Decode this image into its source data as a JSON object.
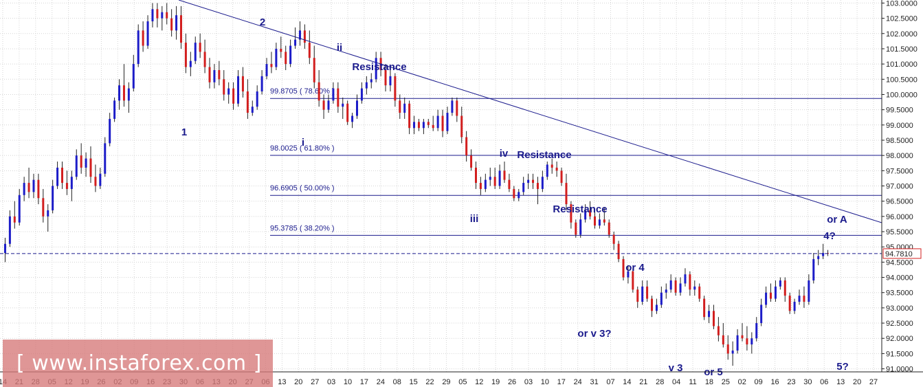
{
  "colors": {
    "background": "#ffffff",
    "grid": "#d4d4d4",
    "up_candle": "#1c1cc8",
    "down_candle": "#d21e1e",
    "wick": "#202020",
    "trendline": "#1a1a8c",
    "fib_line": "#1a1a8c",
    "annotation": "#1a1a8c",
    "price_box": "#d21e1e",
    "watermark_bg": "#d67878",
    "watermark_text": "#ffffff",
    "axis_text": "#1e1e1e"
  },
  "watermark": {
    "text": "[ www.instaforex.com ]"
  },
  "chart_data": {
    "type": "candlestick",
    "title": "",
    "xlabel": "",
    "ylabel": "",
    "ylim": [
      90.9,
      103.1
    ],
    "grid": true,
    "current_price": "94.7810",
    "current_price_value": 94.781,
    "y_ticks": [
      "91.0000",
      "91.5000",
      "92.0000",
      "92.5000",
      "93.0000",
      "93.5000",
      "94.0000",
      "94.5000",
      "95.0000",
      "95.5000",
      "96.0000",
      "96.5000",
      "97.0000",
      "97.5000",
      "98.0000",
      "98.5000",
      "99.0000",
      "99.5000",
      "100.0000",
      "100.5000",
      "101.0000",
      "101.5000",
      "102.0000",
      "102.5000",
      "103.0000"
    ],
    "x_ticks": [
      "14",
      "21",
      "28",
      "05",
      "12",
      "19",
      "26",
      "02",
      "09",
      "16",
      "23",
      "30",
      "06",
      "13",
      "20",
      "27",
      "06",
      "13",
      "20",
      "27",
      "03",
      "10",
      "17",
      "24",
      "08",
      "15",
      "22",
      "29",
      "05",
      "12",
      "19",
      "26",
      "03",
      "10",
      "17",
      "24",
      "31",
      "07",
      "14",
      "21",
      "28",
      "04",
      "11",
      "18",
      "25",
      "02",
      "09",
      "16",
      "23",
      "30",
      "06",
      "13",
      "20",
      "27"
    ],
    "fib_levels": [
      {
        "label": "99.8705 ( 78.60% )",
        "value": 99.8705
      },
      {
        "label": "98.0025 ( 61.80% )",
        "value": 98.0025
      },
      {
        "label": "96.6905 ( 50.00% )",
        "value": 96.6905
      },
      {
        "label": "95.3785 ( 38.20% )",
        "value": 95.3785
      }
    ],
    "trendline": {
      "points": [
        [
          24,
          104.0
        ],
        [
          299,
          95.9
        ]
      ]
    },
    "wave_labels": [
      "1",
      "2",
      "i",
      "ii",
      "iii",
      "iv",
      "or v 3?",
      "or 4",
      "v 3",
      "or 5",
      "4?",
      "or A",
      "5?"
    ],
    "resistance_labels": [
      "Resistance",
      "Resistance",
      "Resistance"
    ],
    "candles": [
      {
        "o": 94.8,
        "h": 95.3,
        "l": 94.5,
        "c": 95.1
      },
      {
        "o": 95.1,
        "h": 96.2,
        "l": 95.0,
        "c": 96.0
      },
      {
        "o": 96.0,
        "h": 96.5,
        "l": 95.6,
        "c": 95.8
      },
      {
        "o": 95.8,
        "h": 96.9,
        "l": 95.7,
        "c": 96.7
      },
      {
        "o": 96.7,
        "h": 97.3,
        "l": 96.5,
        "c": 97.1
      },
      {
        "o": 97.1,
        "h": 97.6,
        "l": 96.6,
        "c": 96.8
      },
      {
        "o": 96.8,
        "h": 97.4,
        "l": 96.6,
        "c": 97.2
      },
      {
        "o": 97.2,
        "h": 97.4,
        "l": 96.4,
        "c": 96.6
      },
      {
        "o": 96.6,
        "h": 96.9,
        "l": 95.8,
        "c": 96.0
      },
      {
        "o": 96.0,
        "h": 96.4,
        "l": 95.5,
        "c": 96.2
      },
      {
        "o": 96.2,
        "h": 97.2,
        "l": 96.1,
        "c": 97.0
      },
      {
        "o": 97.0,
        "h": 97.8,
        "l": 96.9,
        "c": 97.6
      },
      {
        "o": 97.6,
        "h": 97.8,
        "l": 96.9,
        "c": 97.1
      },
      {
        "o": 97.1,
        "h": 97.5,
        "l": 96.7,
        "c": 96.9
      },
      {
        "o": 96.9,
        "h": 97.5,
        "l": 96.5,
        "c": 97.3
      },
      {
        "o": 97.3,
        "h": 98.2,
        "l": 97.2,
        "c": 98.0
      },
      {
        "o": 98.0,
        "h": 98.4,
        "l": 97.4,
        "c": 97.6
      },
      {
        "o": 97.6,
        "h": 98.1,
        "l": 97.3,
        "c": 97.9
      },
      {
        "o": 97.9,
        "h": 98.3,
        "l": 97.1,
        "c": 97.3
      },
      {
        "o": 97.3,
        "h": 97.7,
        "l": 96.8,
        "c": 97.0
      },
      {
        "o": 97.0,
        "h": 97.6,
        "l": 96.9,
        "c": 97.4
      },
      {
        "o": 97.4,
        "h": 98.6,
        "l": 97.3,
        "c": 98.4
      },
      {
        "o": 98.4,
        "h": 99.4,
        "l": 98.3,
        "c": 99.2
      },
      {
        "o": 99.2,
        "h": 99.9,
        "l": 99.1,
        "c": 99.8
      },
      {
        "o": 99.8,
        "h": 100.5,
        "l": 99.5,
        "c": 100.3
      },
      {
        "o": 100.3,
        "h": 101.0,
        "l": 99.6,
        "c": 99.8
      },
      {
        "o": 99.8,
        "h": 100.4,
        "l": 99.4,
        "c": 100.2
      },
      {
        "o": 100.2,
        "h": 101.3,
        "l": 100.1,
        "c": 101.0
      },
      {
        "o": 101.0,
        "h": 102.3,
        "l": 100.9,
        "c": 102.1
      },
      {
        "o": 102.1,
        "h": 102.4,
        "l": 101.4,
        "c": 101.6
      },
      {
        "o": 101.6,
        "h": 102.6,
        "l": 101.5,
        "c": 102.4
      },
      {
        "o": 102.4,
        "h": 103.0,
        "l": 102.2,
        "c": 102.8
      },
      {
        "o": 102.8,
        "h": 103.0,
        "l": 102.2,
        "c": 102.5
      },
      {
        "o": 102.5,
        "h": 102.9,
        "l": 102.1,
        "c": 102.7
      },
      {
        "o": 102.7,
        "h": 103.0,
        "l": 102.3,
        "c": 102.5
      },
      {
        "o": 102.5,
        "h": 102.8,
        "l": 101.9,
        "c": 102.1
      },
      {
        "o": 102.1,
        "h": 102.9,
        "l": 101.8,
        "c": 102.6
      },
      {
        "o": 102.6,
        "h": 102.9,
        "l": 101.5,
        "c": 101.7
      },
      {
        "o": 101.7,
        "h": 102.0,
        "l": 100.7,
        "c": 100.9
      },
      {
        "o": 100.9,
        "h": 101.4,
        "l": 100.6,
        "c": 101.1
      },
      {
        "o": 101.1,
        "h": 101.9,
        "l": 101.0,
        "c": 101.7
      },
      {
        "o": 101.7,
        "h": 102.0,
        "l": 101.2,
        "c": 101.4
      },
      {
        "o": 101.4,
        "h": 101.8,
        "l": 100.7,
        "c": 100.9
      },
      {
        "o": 100.9,
        "h": 101.2,
        "l": 100.2,
        "c": 100.4
      },
      {
        "o": 100.4,
        "h": 101.0,
        "l": 100.2,
        "c": 100.8
      },
      {
        "o": 100.8,
        "h": 101.1,
        "l": 100.3,
        "c": 100.5
      },
      {
        "o": 100.5,
        "h": 100.8,
        "l": 99.8,
        "c": 100.0
      },
      {
        "o": 100.0,
        "h": 100.4,
        "l": 99.7,
        "c": 100.2
      },
      {
        "o": 100.2,
        "h": 100.4,
        "l": 99.5,
        "c": 99.7
      },
      {
        "o": 99.7,
        "h": 100.8,
        "l": 99.6,
        "c": 100.6
      },
      {
        "o": 100.6,
        "h": 100.9,
        "l": 99.9,
        "c": 100.1
      },
      {
        "o": 100.1,
        "h": 100.5,
        "l": 99.2,
        "c": 99.4
      },
      {
        "o": 99.4,
        "h": 99.8,
        "l": 99.3,
        "c": 99.6
      },
      {
        "o": 99.6,
        "h": 100.3,
        "l": 99.5,
        "c": 100.1
      },
      {
        "o": 100.1,
        "h": 100.8,
        "l": 100.0,
        "c": 100.6
      },
      {
        "o": 100.6,
        "h": 101.2,
        "l": 100.5,
        "c": 101.0
      },
      {
        "o": 101.0,
        "h": 101.4,
        "l": 100.7,
        "c": 100.9
      },
      {
        "o": 100.9,
        "h": 101.7,
        "l": 100.8,
        "c": 101.5
      },
      {
        "o": 101.5,
        "h": 101.9,
        "l": 101.2,
        "c": 101.4
      },
      {
        "o": 101.4,
        "h": 101.6,
        "l": 100.8,
        "c": 101.0
      },
      {
        "o": 101.0,
        "h": 101.8,
        "l": 100.9,
        "c": 101.6
      },
      {
        "o": 101.6,
        "h": 102.2,
        "l": 101.5,
        "c": 101.8
      },
      {
        "o": 101.8,
        "h": 102.4,
        "l": 101.6,
        "c": 102.1
      },
      {
        "o": 102.1,
        "h": 102.3,
        "l": 101.5,
        "c": 101.7
      },
      {
        "o": 101.7,
        "h": 102.1,
        "l": 101.0,
        "c": 101.2
      },
      {
        "o": 101.2,
        "h": 101.6,
        "l": 100.2,
        "c": 100.4
      },
      {
        "o": 100.4,
        "h": 100.8,
        "l": 99.6,
        "c": 99.8
      },
      {
        "o": 99.8,
        "h": 100.0,
        "l": 99.2,
        "c": 99.5
      },
      {
        "o": 99.5,
        "h": 100.0,
        "l": 99.4,
        "c": 99.8
      },
      {
        "o": 99.8,
        "h": 100.4,
        "l": 99.7,
        "c": 100.2
      },
      {
        "o": 100.2,
        "h": 100.4,
        "l": 99.4,
        "c": 99.6
      },
      {
        "o": 99.6,
        "h": 99.9,
        "l": 99.2,
        "c": 99.7
      },
      {
        "o": 99.7,
        "h": 99.8,
        "l": 99.0,
        "c": 99.1
      },
      {
        "o": 99.1,
        "h": 99.4,
        "l": 98.9,
        "c": 99.3
      },
      {
        "o": 99.3,
        "h": 100.0,
        "l": 99.2,
        "c": 99.8
      },
      {
        "o": 99.8,
        "h": 100.4,
        "l": 99.7,
        "c": 100.2
      },
      {
        "o": 100.2,
        "h": 100.6,
        "l": 100.0,
        "c": 100.4
      },
      {
        "o": 100.4,
        "h": 100.7,
        "l": 100.2,
        "c": 100.5
      },
      {
        "o": 100.5,
        "h": 101.4,
        "l": 100.4,
        "c": 101.2
      },
      {
        "o": 101.2,
        "h": 101.4,
        "l": 100.6,
        "c": 100.8
      },
      {
        "o": 100.8,
        "h": 101.0,
        "l": 100.1,
        "c": 100.3
      },
      {
        "o": 100.3,
        "h": 100.8,
        "l": 100.1,
        "c": 100.6
      },
      {
        "o": 100.6,
        "h": 100.7,
        "l": 99.6,
        "c": 99.8
      },
      {
        "o": 99.8,
        "h": 100.0,
        "l": 99.2,
        "c": 99.4
      },
      {
        "o": 99.4,
        "h": 99.9,
        "l": 99.2,
        "c": 99.7
      },
      {
        "o": 99.7,
        "h": 99.8,
        "l": 98.7,
        "c": 98.9
      },
      {
        "o": 98.9,
        "h": 99.3,
        "l": 98.7,
        "c": 99.1
      },
      {
        "o": 99.1,
        "h": 99.2,
        "l": 98.8,
        "c": 98.9
      },
      {
        "o": 98.9,
        "h": 99.2,
        "l": 98.7,
        "c": 99.1
      },
      {
        "o": 99.1,
        "h": 99.2,
        "l": 98.9,
        "c": 99.0
      },
      {
        "o": 99.0,
        "h": 99.3,
        "l": 98.8,
        "c": 98.9
      },
      {
        "o": 98.9,
        "h": 99.5,
        "l": 98.8,
        "c": 99.3
      },
      {
        "o": 99.3,
        "h": 99.5,
        "l": 98.6,
        "c": 98.8
      },
      {
        "o": 98.8,
        "h": 99.6,
        "l": 98.7,
        "c": 99.4
      },
      {
        "o": 99.4,
        "h": 99.9,
        "l": 99.3,
        "c": 99.8
      },
      {
        "o": 99.8,
        "h": 99.9,
        "l": 99.1,
        "c": 99.3
      },
      {
        "o": 99.3,
        "h": 99.6,
        "l": 98.4,
        "c": 98.6
      },
      {
        "o": 98.6,
        "h": 98.8,
        "l": 97.8,
        "c": 98.0
      },
      {
        "o": 98.0,
        "h": 98.2,
        "l": 97.5,
        "c": 97.6
      },
      {
        "o": 97.6,
        "h": 97.8,
        "l": 96.9,
        "c": 97.1
      },
      {
        "o": 97.1,
        "h": 97.3,
        "l": 96.7,
        "c": 96.9
      },
      {
        "o": 96.9,
        "h": 97.4,
        "l": 96.8,
        "c": 97.2
      },
      {
        "o": 97.2,
        "h": 97.6,
        "l": 97.0,
        "c": 97.3
      },
      {
        "o": 97.3,
        "h": 97.6,
        "l": 96.9,
        "c": 97.0
      },
      {
        "o": 97.0,
        "h": 97.7,
        "l": 96.9,
        "c": 97.5
      },
      {
        "o": 97.5,
        "h": 97.8,
        "l": 97.1,
        "c": 97.2
      },
      {
        "o": 97.2,
        "h": 97.4,
        "l": 96.8,
        "c": 96.9
      },
      {
        "o": 96.9,
        "h": 97.0,
        "l": 96.5,
        "c": 96.6
      },
      {
        "o": 96.6,
        "h": 96.9,
        "l": 96.5,
        "c": 96.8
      },
      {
        "o": 96.8,
        "h": 97.3,
        "l": 96.7,
        "c": 97.1
      },
      {
        "o": 97.1,
        "h": 97.4,
        "l": 96.9,
        "c": 97.2
      },
      {
        "o": 97.2,
        "h": 97.4,
        "l": 96.9,
        "c": 97.1
      },
      {
        "o": 97.1,
        "h": 97.3,
        "l": 96.4,
        "c": 96.9
      },
      {
        "o": 96.9,
        "h": 97.5,
        "l": 96.8,
        "c": 97.3
      },
      {
        "o": 97.3,
        "h": 97.8,
        "l": 97.2,
        "c": 97.7
      },
      {
        "o": 97.7,
        "h": 97.9,
        "l": 97.4,
        "c": 97.6
      },
      {
        "o": 97.6,
        "h": 97.8,
        "l": 97.3,
        "c": 97.5
      },
      {
        "o": 97.5,
        "h": 97.6,
        "l": 97.0,
        "c": 97.1
      },
      {
        "o": 97.1,
        "h": 97.4,
        "l": 96.2,
        "c": 96.4
      },
      {
        "o": 96.4,
        "h": 96.5,
        "l": 95.6,
        "c": 95.8
      },
      {
        "o": 95.8,
        "h": 95.9,
        "l": 95.3,
        "c": 95.4
      },
      {
        "o": 95.4,
        "h": 96.1,
        "l": 95.3,
        "c": 95.9
      },
      {
        "o": 95.9,
        "h": 96.4,
        "l": 95.8,
        "c": 96.2
      },
      {
        "o": 96.2,
        "h": 96.5,
        "l": 95.9,
        "c": 96.0
      },
      {
        "o": 96.0,
        "h": 96.2,
        "l": 95.6,
        "c": 95.7
      },
      {
        "o": 95.7,
        "h": 96.1,
        "l": 95.6,
        "c": 95.9
      },
      {
        "o": 95.9,
        "h": 96.3,
        "l": 95.7,
        "c": 95.8
      },
      {
        "o": 95.8,
        "h": 95.9,
        "l": 95.3,
        "c": 95.4
      },
      {
        "o": 95.4,
        "h": 95.5,
        "l": 94.9,
        "c": 95.1
      },
      {
        "o": 95.1,
        "h": 95.2,
        "l": 94.5,
        "c": 94.6
      },
      {
        "o": 94.6,
        "h": 94.7,
        "l": 93.9,
        "c": 94.0
      },
      {
        "o": 94.0,
        "h": 94.4,
        "l": 93.8,
        "c": 94.2
      },
      {
        "o": 94.2,
        "h": 94.3,
        "l": 93.5,
        "c": 93.6
      },
      {
        "o": 93.6,
        "h": 93.7,
        "l": 93.0,
        "c": 93.2
      },
      {
        "o": 93.2,
        "h": 93.9,
        "l": 93.1,
        "c": 93.7
      },
      {
        "o": 93.7,
        "h": 93.9,
        "l": 93.2,
        "c": 93.3
      },
      {
        "o": 93.3,
        "h": 93.4,
        "l": 92.7,
        "c": 92.9
      },
      {
        "o": 92.9,
        "h": 93.3,
        "l": 92.8,
        "c": 93.1
      },
      {
        "o": 93.1,
        "h": 93.7,
        "l": 93.0,
        "c": 93.5
      },
      {
        "o": 93.5,
        "h": 93.8,
        "l": 93.3,
        "c": 93.6
      },
      {
        "o": 93.6,
        "h": 94.1,
        "l": 93.5,
        "c": 93.9
      },
      {
        "o": 93.9,
        "h": 94.0,
        "l": 93.4,
        "c": 93.5
      },
      {
        "o": 93.5,
        "h": 94.0,
        "l": 93.4,
        "c": 93.8
      },
      {
        "o": 93.8,
        "h": 94.3,
        "l": 93.7,
        "c": 94.1
      },
      {
        "o": 94.1,
        "h": 94.2,
        "l": 93.4,
        "c": 93.6
      },
      {
        "o": 93.6,
        "h": 93.9,
        "l": 93.4,
        "c": 93.7
      },
      {
        "o": 93.7,
        "h": 93.8,
        "l": 93.2,
        "c": 93.3
      },
      {
        "o": 93.3,
        "h": 93.4,
        "l": 92.6,
        "c": 92.7
      },
      {
        "o": 92.7,
        "h": 93.1,
        "l": 92.5,
        "c": 92.9
      },
      {
        "o": 92.9,
        "h": 93.1,
        "l": 92.3,
        "c": 92.4
      },
      {
        "o": 92.4,
        "h": 92.7,
        "l": 91.9,
        "c": 92.1
      },
      {
        "o": 92.1,
        "h": 92.5,
        "l": 91.7,
        "c": 91.8
      },
      {
        "o": 91.8,
        "h": 92.1,
        "l": 91.3,
        "c": 91.5
      },
      {
        "o": 91.5,
        "h": 91.9,
        "l": 91.1,
        "c": 91.6
      },
      {
        "o": 91.6,
        "h": 92.3,
        "l": 91.5,
        "c": 92.1
      },
      {
        "o": 92.1,
        "h": 92.5,
        "l": 91.9,
        "c": 92.0
      },
      {
        "o": 92.0,
        "h": 92.4,
        "l": 91.6,
        "c": 91.8
      },
      {
        "o": 91.8,
        "h": 92.2,
        "l": 91.5,
        "c": 92.0
      },
      {
        "o": 92.0,
        "h": 92.7,
        "l": 91.9,
        "c": 92.5
      },
      {
        "o": 92.5,
        "h": 93.3,
        "l": 92.4,
        "c": 93.1
      },
      {
        "o": 93.1,
        "h": 93.7,
        "l": 93.0,
        "c": 93.5
      },
      {
        "o": 93.5,
        "h": 93.8,
        "l": 93.2,
        "c": 93.3
      },
      {
        "o": 93.3,
        "h": 93.9,
        "l": 93.2,
        "c": 93.7
      },
      {
        "o": 93.7,
        "h": 94.0,
        "l": 93.6,
        "c": 93.9
      },
      {
        "o": 93.9,
        "h": 94.0,
        "l": 93.2,
        "c": 93.4
      },
      {
        "o": 93.4,
        "h": 93.5,
        "l": 92.8,
        "c": 92.9
      },
      {
        "o": 92.9,
        "h": 93.3,
        "l": 92.8,
        "c": 93.2
      },
      {
        "o": 93.2,
        "h": 93.6,
        "l": 93.1,
        "c": 93.4
      },
      {
        "o": 93.4,
        "h": 93.7,
        "l": 93.0,
        "c": 93.2
      },
      {
        "o": 93.2,
        "h": 94.1,
        "l": 93.1,
        "c": 93.9
      },
      {
        "o": 93.9,
        "h": 94.8,
        "l": 93.8,
        "c": 94.6
      },
      {
        "o": 94.6,
        "h": 94.9,
        "l": 94.4,
        "c": 94.7
      },
      {
        "o": 94.7,
        "h": 95.1,
        "l": 94.6,
        "c": 94.8
      },
      {
        "o": 94.8,
        "h": 94.9,
        "l": 94.7,
        "c": 94.78
      }
    ]
  }
}
